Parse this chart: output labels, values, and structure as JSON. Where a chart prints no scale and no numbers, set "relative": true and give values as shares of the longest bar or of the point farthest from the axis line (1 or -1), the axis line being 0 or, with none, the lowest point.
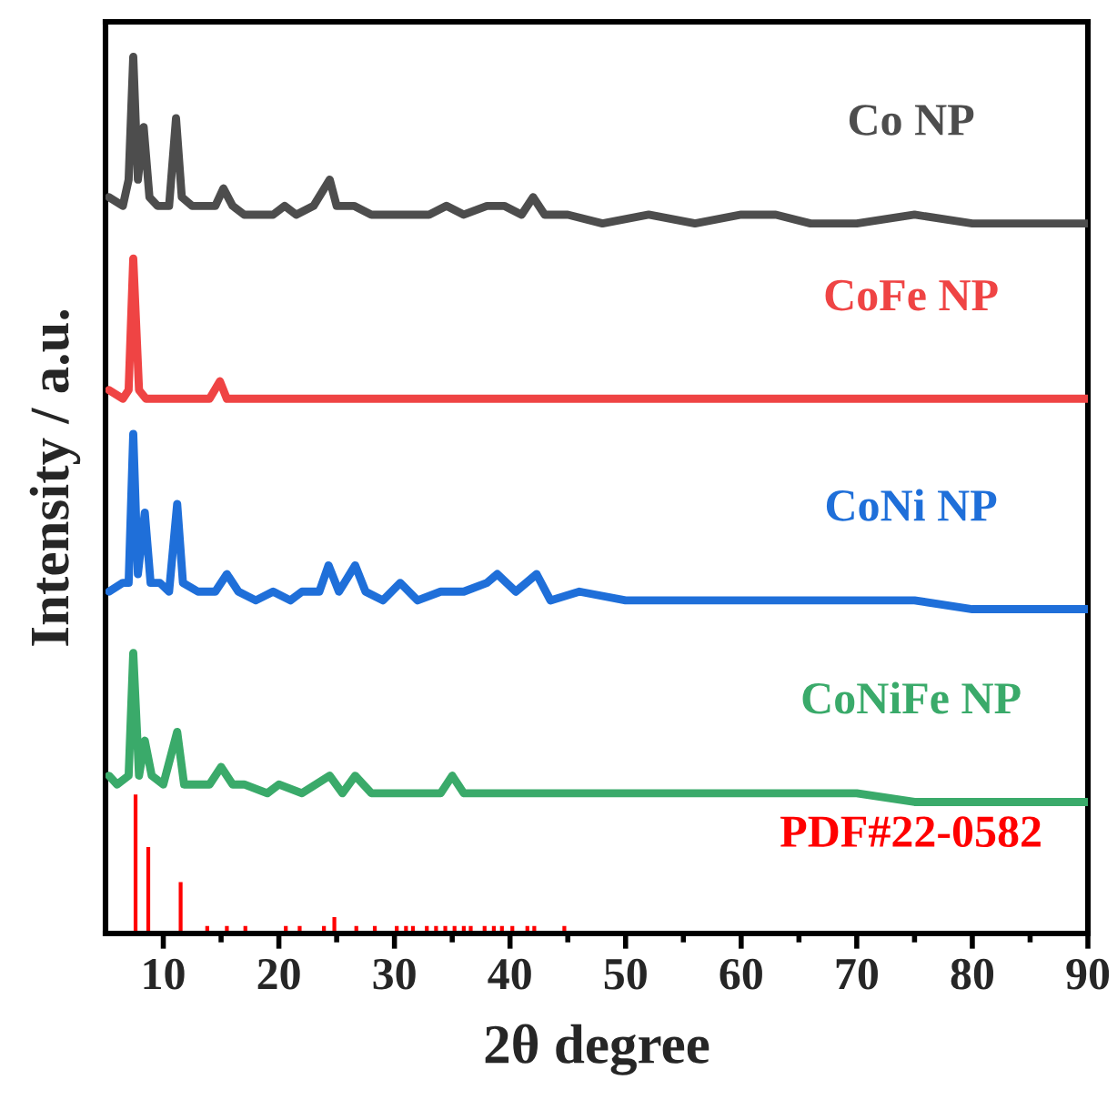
{
  "chart_data": {
    "type": "line",
    "relative": true,
    "xlabel": "2θ degree",
    "ylabel": "Intensity / a.u.",
    "xlim": [
      5,
      90
    ],
    "xticks": [
      10,
      {
        "value": 15,
        "label": null
      },
      20,
      {
        "value": 25,
        "label": null
      },
      30,
      {
        "value": 35,
        "label": null
      },
      40,
      {
        "value": 45,
        "label": null
      },
      50,
      {
        "value": 55,
        "label": null
      },
      60,
      {
        "value": 65,
        "label": null
      },
      70,
      {
        "value": 75,
        "label": null
      },
      80,
      {
        "value": 85,
        "label": null
      },
      90
    ],
    "tick_labels": "x",
    "grid": false,
    "legend": false,
    "series": [
      {
        "name": "Co NP",
        "color": "#4d4d4d",
        "x": [
          5.3,
          6.5,
          7.0,
          7.4,
          7.8,
          8.3,
          8.8,
          9.5,
          10.5,
          11.1,
          11.6,
          12.5,
          13.5,
          14.5,
          15.2,
          16,
          17,
          18.5,
          19.5,
          20.5,
          21.5,
          23,
          24.4,
          25,
          26.5,
          28,
          30,
          31.5,
          33,
          34.5,
          36,
          38,
          39.5,
          41,
          42,
          43,
          45,
          48,
          52,
          56,
          60,
          63,
          66,
          70,
          75,
          80,
          85,
          90
        ],
        "values": [
          0.84,
          0.83,
          0.86,
          1.0,
          0.86,
          0.92,
          0.84,
          0.83,
          0.83,
          0.93,
          0.84,
          0.83,
          0.83,
          0.83,
          0.85,
          0.83,
          0.82,
          0.82,
          0.82,
          0.83,
          0.82,
          0.83,
          0.86,
          0.83,
          0.83,
          0.82,
          0.82,
          0.82,
          0.82,
          0.83,
          0.82,
          0.83,
          0.83,
          0.82,
          0.84,
          0.82,
          0.82,
          0.81,
          0.82,
          0.81,
          0.82,
          0.82,
          0.81,
          0.81,
          0.82,
          0.81,
          0.81,
          0.81
        ]
      },
      {
        "name": "CoFe NP",
        "color": "#ef4444",
        "x": [
          5.3,
          6.5,
          7.0,
          7.4,
          7.9,
          8.5,
          10,
          12,
          14,
          14.9,
          15.5,
          18,
          22,
          26,
          30,
          35,
          39,
          40,
          45,
          50,
          55,
          60,
          65,
          70,
          75,
          80,
          85,
          90
        ],
        "values": [
          0.62,
          0.61,
          0.62,
          0.77,
          0.62,
          0.61,
          0.61,
          0.61,
          0.61,
          0.63,
          0.61,
          0.61,
          0.61,
          0.61,
          0.61,
          0.61,
          0.61,
          0.61,
          0.61,
          0.61,
          0.61,
          0.61,
          0.61,
          0.61,
          0.61,
          0.61,
          0.61,
          0.61
        ]
      },
      {
        "name": "CoNi NP",
        "color": "#1f6fd9",
        "x": [
          5.3,
          6.5,
          7.0,
          7.4,
          7.8,
          8.4,
          8.9,
          9.7,
          10.5,
          11.2,
          11.7,
          13,
          14.5,
          15.5,
          16.5,
          18,
          19.5,
          21,
          22,
          23.5,
          24.3,
          25.2,
          26.6,
          27.5,
          29,
          30.5,
          32,
          34,
          36,
          38,
          38.9,
          40.5,
          42.3,
          43.5,
          46,
          50,
          55,
          60,
          65,
          70,
          75,
          80,
          85,
          90
        ],
        "values": [
          0.39,
          0.4,
          0.4,
          0.57,
          0.41,
          0.48,
          0.4,
          0.4,
          0.39,
          0.49,
          0.4,
          0.39,
          0.39,
          0.41,
          0.39,
          0.38,
          0.39,
          0.38,
          0.39,
          0.39,
          0.42,
          0.39,
          0.42,
          0.39,
          0.38,
          0.4,
          0.38,
          0.39,
          0.39,
          0.4,
          0.41,
          0.39,
          0.41,
          0.38,
          0.39,
          0.38,
          0.38,
          0.38,
          0.38,
          0.38,
          0.38,
          0.37,
          0.37,
          0.37
        ]
      },
      {
        "name": "CoNiFe NP",
        "color": "#3aaa6a",
        "x": [
          5.3,
          6,
          7.0,
          7.4,
          7.9,
          8.4,
          9,
          10,
          11.2,
          11.8,
          13,
          14,
          15,
          16,
          17,
          19,
          20,
          22,
          24.4,
          25.5,
          26.6,
          28,
          30,
          32,
          34,
          35,
          36,
          40,
          43,
          46,
          50,
          55,
          60,
          65,
          70,
          75,
          80,
          85,
          90
        ],
        "values": [
          0.18,
          0.17,
          0.18,
          0.32,
          0.18,
          0.22,
          0.18,
          0.17,
          0.23,
          0.17,
          0.17,
          0.17,
          0.19,
          0.17,
          0.17,
          0.16,
          0.17,
          0.16,
          0.18,
          0.16,
          0.18,
          0.16,
          0.16,
          0.16,
          0.16,
          0.18,
          0.16,
          0.16,
          0.16,
          0.16,
          0.16,
          0.16,
          0.16,
          0.16,
          0.16,
          0.15,
          0.15,
          0.15,
          0.15
        ]
      },
      {
        "name": "PDF#22-0582",
        "type": "bar",
        "color": "#ff0000",
        "x": [
          7.6,
          8.7,
          11.5,
          13.8,
          15.5,
          17.1,
          20.6,
          21.8,
          23.9,
          24.8,
          26.7,
          28.3,
          30.2,
          31.0,
          31.6,
          32.8,
          33.6,
          34.4,
          35.2,
          36.0,
          36.6,
          37.8,
          38.6,
          39.3,
          40.2,
          41.5,
          42.1,
          44.7
        ],
        "values": [
          0.16,
          0.1,
          0.06,
          0.01,
          0.01,
          0.01,
          0.01,
          0.01,
          0.01,
          0.02,
          0.01,
          0.01,
          0.01,
          0.01,
          0.01,
          0.01,
          0.01,
          0.01,
          0.01,
          0.01,
          0.01,
          0.01,
          0.01,
          0.01,
          0.01,
          0.01,
          0.01,
          0.01
        ]
      }
    ]
  }
}
